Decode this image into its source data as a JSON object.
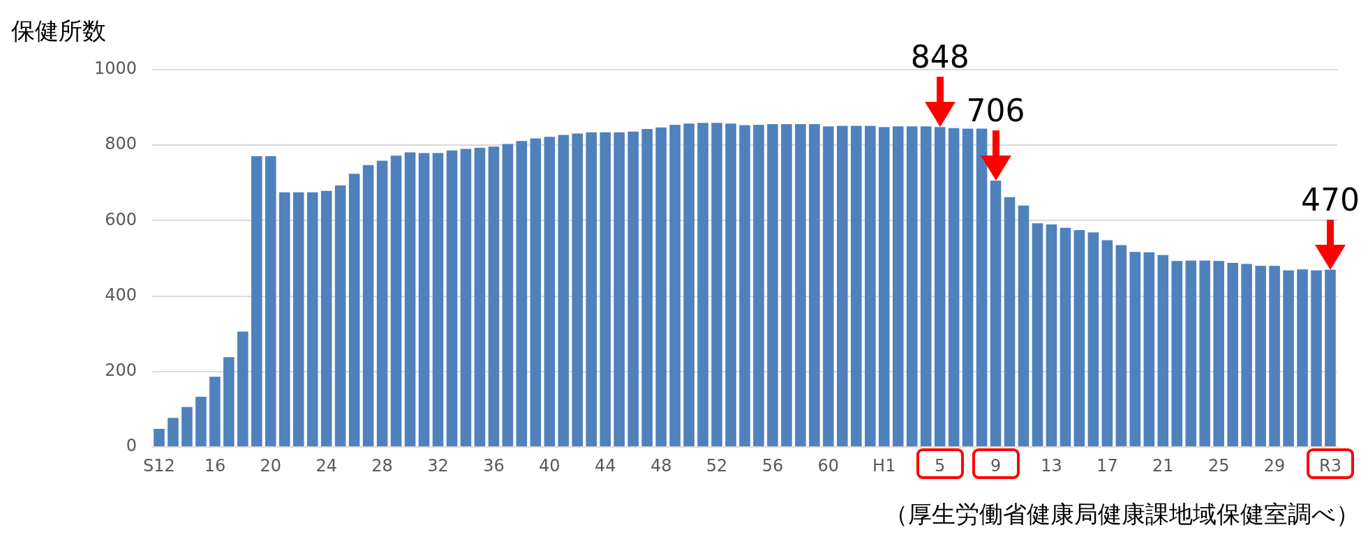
{
  "chart_data": {
    "type": "bar",
    "ylabel": "保健所数",
    "categories": [
      "S12",
      null,
      null,
      null,
      "16",
      null,
      null,
      null,
      "20",
      null,
      null,
      null,
      "24",
      null,
      null,
      null,
      "28",
      null,
      null,
      null,
      "32",
      null,
      null,
      null,
      "36",
      null,
      null,
      null,
      "40",
      null,
      null,
      null,
      "44",
      null,
      null,
      null,
      "48",
      null,
      null,
      null,
      "52",
      null,
      null,
      null,
      "56",
      null,
      null,
      null,
      "60",
      null,
      null,
      null,
      "H1",
      null,
      null,
      null,
      "5",
      null,
      null,
      null,
      "9",
      null,
      null,
      null,
      "13",
      null,
      null,
      null,
      "17",
      null,
      null,
      null,
      "21",
      null,
      null,
      null,
      "25",
      null,
      null,
      null,
      "29",
      null,
      null,
      null,
      "R3"
    ],
    "values": [
      48,
      77,
      106,
      133,
      186,
      238,
      306,
      771,
      771,
      675,
      675,
      675,
      679,
      693,
      724,
      747,
      759,
      772,
      781,
      779,
      779,
      786,
      790,
      793,
      796,
      803,
      811,
      818,
      822,
      827,
      831,
      834,
      834,
      834,
      836,
      843,
      847,
      854,
      857,
      859,
      859,
      857,
      853,
      854,
      856,
      856,
      856,
      856,
      850,
      851,
      851,
      851,
      848,
      850,
      850,
      850,
      848,
      845,
      844,
      844,
      706,
      662,
      640,
      593,
      590,
      581,
      575,
      569,
      548,
      535,
      517,
      516,
      509,
      493,
      494,
      494,
      493,
      488,
      485,
      480,
      480,
      468,
      471,
      468,
      470
    ],
    "color": "#4f81bd",
    "ylim": [
      0,
      1000
    ],
    "yticks": [
      0,
      200,
      400,
      600,
      800,
      1000
    ],
    "grid": "y",
    "legend": false,
    "annotations": [
      {
        "text": "848",
        "x": "5",
        "y": 848
      },
      {
        "text": "706",
        "x": "9",
        "y": 706
      },
      {
        "text": "470",
        "x": "R3",
        "y": 470
      },
      "（厚生労働省健康局健康課地域保健室調べ）"
    ]
  }
}
